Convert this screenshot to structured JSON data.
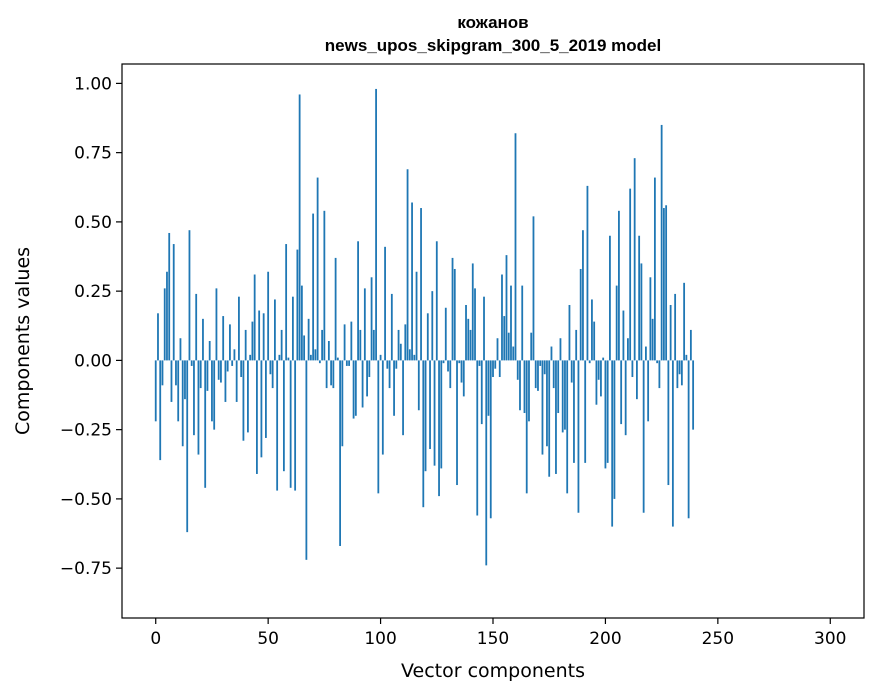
{
  "chart_data": {
    "type": "bar",
    "title_line1": "кожанов",
    "title_line2": "news_upos_skipgram_300_5_2019 model",
    "xlabel": "Vector components",
    "ylabel": "Components values",
    "xlim": [
      -15,
      315
    ],
    "ylim": [
      -0.93,
      1.07
    ],
    "xticks": [
      0,
      50,
      100,
      150,
      200,
      250,
      300
    ],
    "xtick_labels": [
      "0",
      "50",
      "100",
      "150",
      "200",
      "250",
      "300"
    ],
    "yticks": [
      -0.75,
      -0.5,
      -0.25,
      0.0,
      0.25,
      0.5,
      0.75,
      1.0
    ],
    "ytick_labels": [
      "−0.75",
      "−0.50",
      "−0.25",
      "0.00",
      "0.25",
      "0.50",
      "0.75",
      "1.00"
    ],
    "bar_color": "#1f77b4",
    "values": [
      -0.22,
      0.17,
      -0.36,
      -0.09,
      0.26,
      0.32,
      0.46,
      -0.15,
      0.42,
      -0.09,
      -0.22,
      0.08,
      -0.31,
      -0.14,
      -0.62,
      0.47,
      -0.02,
      -0.27,
      0.24,
      -0.34,
      -0.1,
      0.15,
      -0.46,
      -0.11,
      0.07,
      -0.22,
      -0.25,
      0.26,
      -0.07,
      -0.08,
      0.16,
      -0.15,
      -0.04,
      0.13,
      -0.02,
      0.04,
      -0.15,
      0.23,
      -0.06,
      -0.29,
      0.11,
      -0.26,
      0.02,
      0.14,
      0.31,
      -0.41,
      0.18,
      -0.35,
      0.17,
      -0.28,
      0.32,
      -0.05,
      -0.1,
      0.22,
      -0.47,
      0.02,
      0.11,
      -0.4,
      0.42,
      0.01,
      -0.46,
      0.23,
      -0.47,
      0.4,
      0.96,
      0.27,
      0.09,
      -0.72,
      0.15,
      0.02,
      0.53,
      0.04,
      0.66,
      -0.01,
      0.11,
      0.54,
      -0.1,
      0.07,
      -0.09,
      -0.1,
      0.37,
      0.01,
      -0.67,
      -0.31,
      0.13,
      -0.02,
      -0.02,
      0.14,
      -0.21,
      -0.2,
      0.43,
      0.11,
      -0.17,
      0.26,
      -0.13,
      -0.06,
      0.3,
      0.11,
      0.98,
      -0.48,
      0.02,
      -0.34,
      0.41,
      -0.03,
      -0.1,
      0.24,
      -0.2,
      -0.03,
      0.11,
      0.06,
      -0.27,
      0.13,
      0.69,
      0.04,
      0.57,
      0.02,
      0.32,
      -0.18,
      0.55,
      -0.53,
      -0.4,
      0.17,
      -0.32,
      0.25,
      -0.38,
      0.43,
      -0.49,
      -0.39,
      -0.01,
      0.19,
      -0.04,
      -0.1,
      0.37,
      0.33,
      -0.45,
      -0.01,
      -0.08,
      -0.13,
      0.2,
      0.15,
      0.11,
      0.35,
      0.26,
      -0.56,
      -0.02,
      -0.23,
      0.23,
      -0.74,
      -0.2,
      -0.57,
      -0.06,
      -0.03,
      0.08,
      -0.06,
      0.31,
      0.16,
      0.38,
      0.1,
      0.27,
      0.05,
      0.82,
      -0.07,
      -0.18,
      0.27,
      -0.19,
      -0.48,
      -0.22,
      0.1,
      0.52,
      -0.1,
      -0.11,
      -0.02,
      -0.34,
      -0.05,
      -0.31,
      -0.42,
      0.05,
      -0.1,
      -0.41,
      -0.19,
      0.08,
      -0.26,
      -0.25,
      -0.48,
      0.2,
      -0.08,
      -0.37,
      0.11,
      -0.55,
      0.33,
      0.47,
      -0.37,
      0.63,
      -0.01,
      0.22,
      0.14,
      -0.16,
      -0.07,
      -0.13,
      0.01,
      -0.39,
      -0.37,
      0.45,
      -0.6,
      -0.5,
      0.27,
      0.54,
      -0.23,
      0.18,
      -0.27,
      0.08,
      0.62,
      -0.06,
      0.73,
      -0.14,
      0.45,
      0.35,
      -0.55,
      0.05,
      -0.22,
      0.3,
      0.15,
      0.66,
      -0.01,
      -0.1,
      0.85,
      0.55,
      0.56,
      -0.45,
      0.2,
      -0.6,
      0.24,
      -0.1,
      -0.05,
      -0.09,
      0.28,
      0.02,
      -0.57,
      0.11,
      -0.25
    ]
  }
}
